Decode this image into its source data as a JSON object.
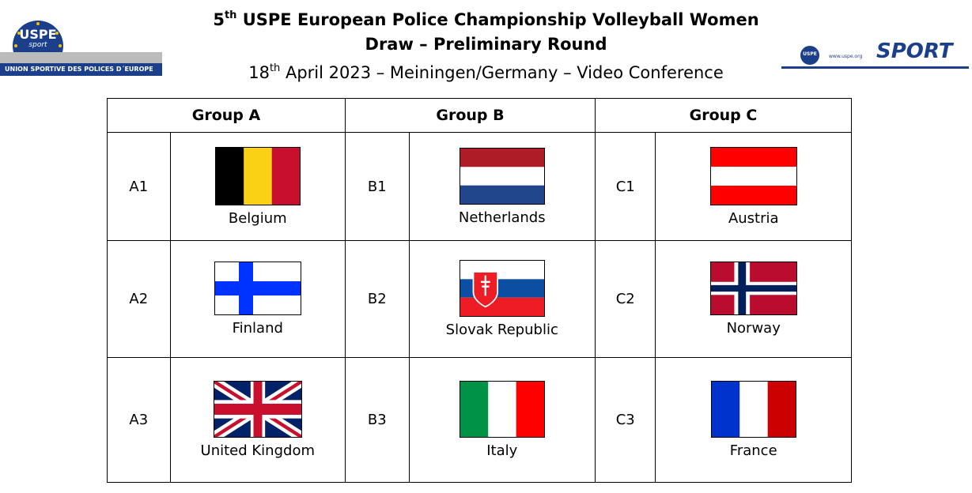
{
  "header": {
    "logo_left": {
      "name": "USPE",
      "tagline": "sport",
      "caption": "UNION SPORTIVE DES POLICES D´EUROPE"
    },
    "logo_right": {
      "name": "USPE",
      "url": "www.uspe.org",
      "word": "SPORT"
    },
    "title_line1": {
      "number": "5",
      "sup": "th",
      "text": " USPE European Police Championship Volleyball Women"
    },
    "title_line2": "Draw – Preliminary Round",
    "date_line": {
      "number": "18",
      "sup": "th",
      "text": " April 2023 – Meiningen/Germany – Video Conference"
    }
  },
  "groups": [
    {
      "name": "Group A",
      "teams": [
        {
          "seed": "A1",
          "country": "Belgium"
        },
        {
          "seed": "A2",
          "country": "Finland"
        },
        {
          "seed": "A3",
          "country": "United Kingdom"
        }
      ]
    },
    {
      "name": "Group B",
      "teams": [
        {
          "seed": "B1",
          "country": "Netherlands"
        },
        {
          "seed": "B2",
          "country": "Slovak Republic"
        },
        {
          "seed": "B3",
          "country": "Italy"
        }
      ]
    },
    {
      "name": "Group C",
      "teams": [
        {
          "seed": "C1",
          "country": "Austria"
        },
        {
          "seed": "C2",
          "country": "Norway"
        },
        {
          "seed": "C3",
          "country": "France"
        }
      ]
    }
  ]
}
